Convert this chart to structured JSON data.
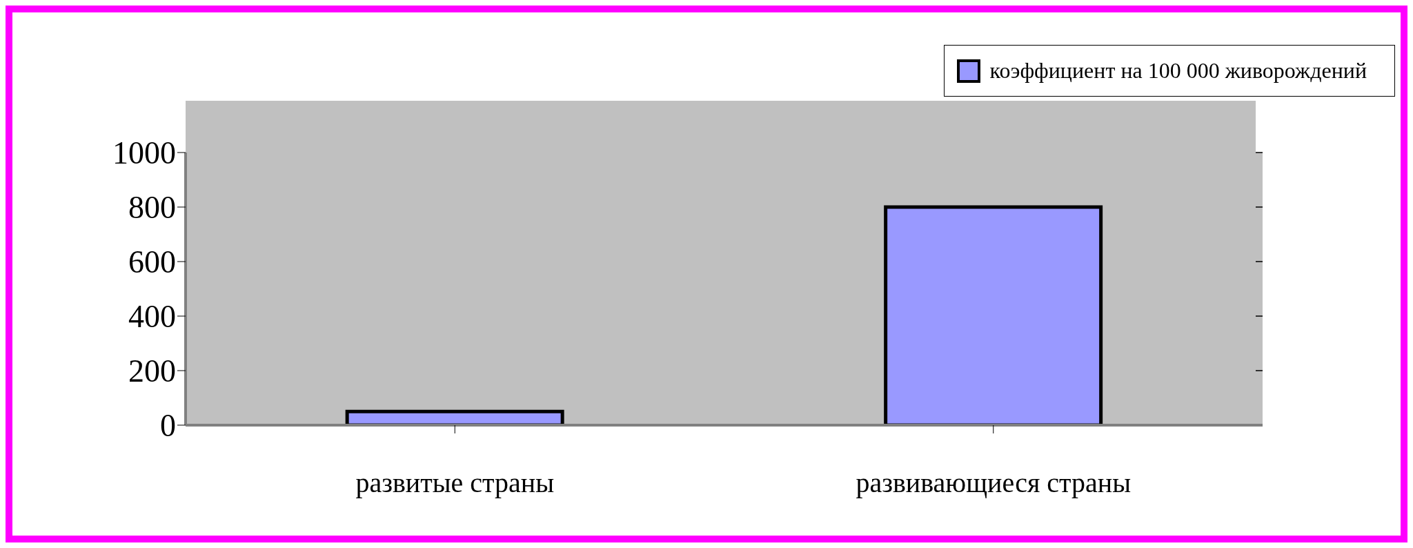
{
  "chart_data": {
    "type": "bar",
    "categories": [
      "развитые страны",
      "развивающиеся страны"
    ],
    "series": [
      {
        "name": "коэффициент на 100 000 живорождений",
        "color": "#9999ff",
        "values": [
          50,
          800
        ]
      }
    ],
    "ylim": [
      0,
      1000
    ],
    "yticks": [
      0,
      200,
      400,
      600,
      800,
      1000
    ],
    "grid": "y",
    "legend": "top right"
  }
}
